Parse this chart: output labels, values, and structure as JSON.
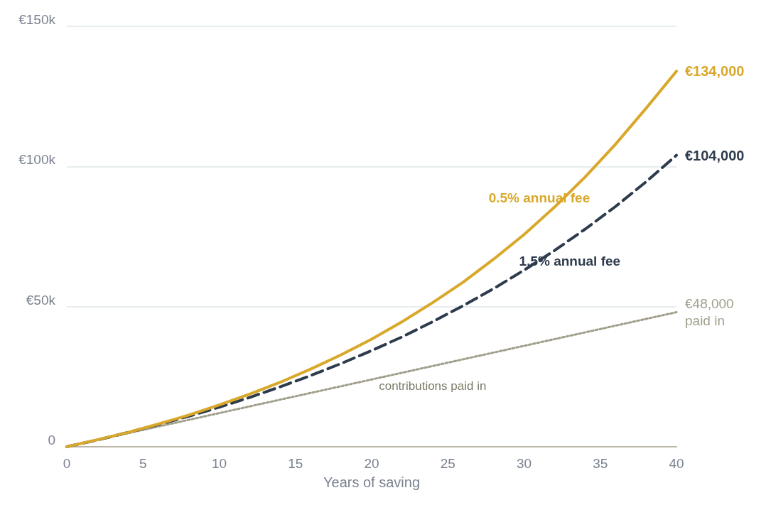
{
  "chart_data": {
    "type": "line",
    "xlabel": "Years of saving",
    "x": [
      0,
      2,
      4,
      6,
      8,
      10,
      12,
      14,
      16,
      18,
      20,
      22,
      24,
      26,
      28,
      30,
      32,
      34,
      36,
      38,
      40
    ],
    "series": [
      {
        "name": "0.5% annual fee",
        "color": "#d9a82a",
        "line_style": "solid",
        "values": [
          0,
          2500,
          5100,
          8100,
          11300,
          14900,
          18800,
          23000,
          27700,
          32800,
          38400,
          44600,
          51400,
          58700,
          66900,
          75700,
          85500,
          96200,
          107900,
          120700,
          134000
        ],
        "value_labels": [
          null,
          null,
          null,
          null,
          null,
          null,
          null,
          null,
          null,
          null,
          null,
          null,
          null,
          null,
          null,
          null,
          null,
          null,
          null,
          null,
          "€134,000"
        ]
      },
      {
        "name": "1.5% annual fee",
        "color": "#2d3b4c",
        "line_style": "dashed",
        "values": [
          0,
          2400,
          5100,
          7900,
          10900,
          14100,
          17600,
          21400,
          25400,
          29700,
          34300,
          39200,
          44600,
          50300,
          56400,
          63000,
          70000,
          77600,
          85700,
          94500,
          104000
        ],
        "value_labels": [
          null,
          null,
          null,
          null,
          null,
          null,
          null,
          null,
          null,
          null,
          null,
          null,
          null,
          null,
          null,
          null,
          null,
          null,
          null,
          null,
          "€104,000"
        ]
      },
      {
        "name": "contributions paid in",
        "color": "#a09e8a",
        "line_style": "dotted",
        "x": [
          0,
          40
        ],
        "values": [
          0,
          48000
        ],
        "value_labels": [
          null,
          "€48,000\npaid in"
        ]
      }
    ],
    "xlim": [
      0,
      40
    ],
    "xticks": [
      0,
      5,
      10,
      15,
      20,
      25,
      30,
      35,
      40
    ],
    "ylim": [
      0,
      150000
    ],
    "yticks": [
      {
        "value": 0,
        "label": "0"
      },
      {
        "value": 50000,
        "label": "€50k"
      },
      {
        "value": 100000,
        "label": "€100k"
      },
      {
        "value": 150000,
        "label": "€150k"
      }
    ],
    "grid": "y",
    "legend": false,
    "marker": "none"
  }
}
